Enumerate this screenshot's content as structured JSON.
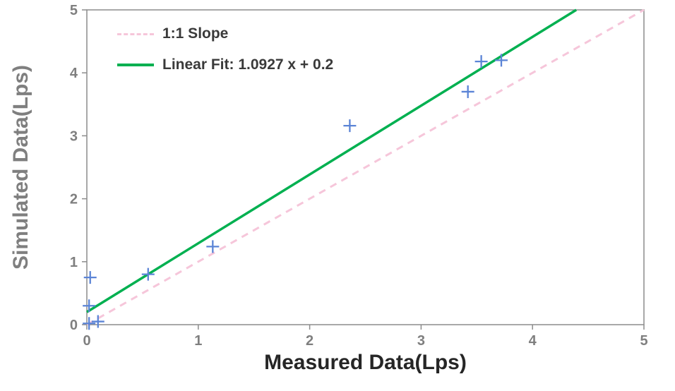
{
  "chart_data": {
    "type": "scatter",
    "title": "",
    "xlabel": "Measured Data(Lps)",
    "ylabel": "Simulated Data(Lps)",
    "xlim": [
      0,
      5
    ],
    "ylim": [
      0,
      5
    ],
    "xticks": [
      0,
      1,
      2,
      3,
      4,
      5
    ],
    "yticks": [
      0,
      1,
      2,
      3,
      4,
      5
    ],
    "grid": false,
    "legend_position": "top-left",
    "points": [
      {
        "x": 0.02,
        "y": 0.02
      },
      {
        "x": 0.1,
        "y": 0.05
      },
      {
        "x": 0.02,
        "y": 0.3
      },
      {
        "x": 0.03,
        "y": 0.75
      },
      {
        "x": 0.55,
        "y": 0.8
      },
      {
        "x": 1.13,
        "y": 1.24
      },
      {
        "x": 2.36,
        "y": 3.16
      },
      {
        "x": 3.42,
        "y": 3.7
      },
      {
        "x": 3.54,
        "y": 4.18
      },
      {
        "x": 3.72,
        "y": 4.2
      }
    ],
    "lines": [
      {
        "name": "1:1 Slope",
        "style": "dashed",
        "color": "#F6C6DA",
        "from": [
          0,
          0
        ],
        "to": [
          5,
          5
        ]
      },
      {
        "name": "Linear Fit: 1.0927 x + 0.2",
        "style": "solid",
        "color": "#00B050",
        "slope": 1.0927,
        "intercept": 0.2
      }
    ],
    "marker": {
      "shape": "plus",
      "color": "#5B84D6",
      "size": 9
    },
    "axis_color": "#8C8C8C",
    "tick_color": "#7F7F7F"
  }
}
